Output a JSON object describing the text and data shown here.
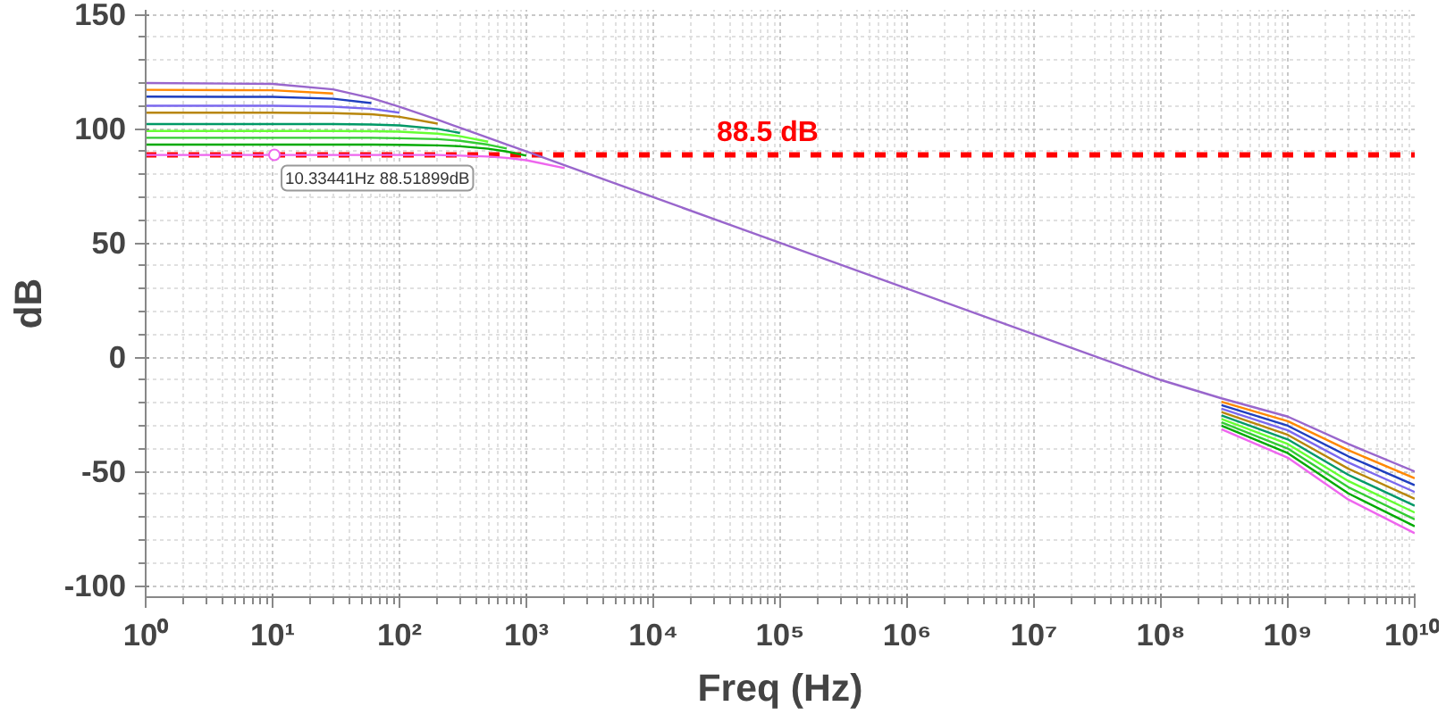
{
  "chart_data": {
    "type": "line",
    "xlabel": "Freq (Hz)",
    "ylabel": "dB",
    "log": "x",
    "grid": true,
    "marker": "none",
    "line_style": "solid",
    "x": [
      1,
      10,
      30,
      60,
      100,
      200,
      300,
      500,
      700,
      1000,
      2000,
      3000,
      10000,
      100000,
      1000000,
      10000000,
      100000000,
      300000000,
      1000000000,
      3000000000,
      10000000000
    ],
    "xlim": [
      1,
      10000000000
    ],
    "xticks": [
      {
        "value": 1,
        "label": "10⁰"
      },
      {
        "value": 10,
        "label": "10¹"
      },
      {
        "value": 100,
        "label": "10²"
      },
      {
        "value": 1000,
        "label": "10³"
      },
      {
        "value": 10000,
        "label": "10⁴"
      },
      {
        "value": 100000,
        "label": "10⁵"
      },
      {
        "value": 1000000,
        "label": "10⁶"
      },
      {
        "value": 10000000,
        "label": "10⁷"
      },
      {
        "value": 100000000,
        "label": "10⁸"
      },
      {
        "value": 1000000000,
        "label": "10⁹"
      },
      {
        "value": 10000000000,
        "label": "10¹⁰"
      }
    ],
    "ylim": [
      -105,
      152
    ],
    "yticks": [
      -100,
      -50,
      0,
      50,
      100,
      150
    ],
    "series": [
      {
        "color": "#ff8800",
        "values": [
          117,
          116.8,
          115.4,
          null,
          null,
          null,
          null,
          null,
          null,
          null,
          null,
          null,
          null,
          null,
          null,
          null,
          null,
          -19.5,
          -28,
          -40.7,
          -53
        ]
      },
      {
        "color": "#1f3fbf",
        "values": [
          114,
          113.9,
          113.1,
          111.2,
          null,
          null,
          null,
          null,
          null,
          null,
          null,
          null,
          null,
          null,
          null,
          null,
          null,
          -21,
          -30,
          -43.4,
          -56
        ]
      },
      {
        "color": "#7b68ee",
        "values": [
          110,
          110,
          109.6,
          108.7,
          107.0,
          null,
          null,
          null,
          null,
          null,
          null,
          null,
          null,
          null,
          null,
          null,
          null,
          -22.5,
          -32,
          -46.1,
          -59
        ]
      },
      {
        "color": "#b8860b",
        "values": [
          107,
          107,
          106.8,
          106.3,
          105.2,
          102.2,
          null,
          null,
          null,
          null,
          null,
          null,
          null,
          null,
          null,
          null,
          null,
          -24,
          -34,
          -48.8,
          -62
        ]
      },
      {
        "color": "#009966",
        "values": [
          102,
          102,
          102,
          101.8,
          101.4,
          99.9,
          98.1,
          null,
          null,
          null,
          null,
          null,
          null,
          null,
          null,
          null,
          null,
          -25.5,
          -36,
          -51.5,
          -65
        ]
      },
      {
        "color": "#66ff33",
        "values": [
          99,
          99,
          99,
          98.9,
          98.7,
          97.8,
          96.7,
          94.3,
          null,
          null,
          null,
          null,
          null,
          null,
          null,
          null,
          null,
          -27,
          -38,
          -54.2,
          -68
        ]
      },
      {
        "color": "#33cc33",
        "values": [
          96,
          96,
          96,
          96,
          95.8,
          95.4,
          94.7,
          93.0,
          91.3,
          null,
          null,
          null,
          null,
          null,
          null,
          null,
          null,
          -28.5,
          -40,
          -56.9,
          -71
        ]
      },
      {
        "color": "#00aa00",
        "values": [
          93,
          93,
          93,
          93,
          92.9,
          92.7,
          92.3,
          91.2,
          90.0,
          88.2,
          null,
          null,
          null,
          null,
          null,
          null,
          null,
          -30,
          -42,
          -59.6,
          -74
        ]
      },
      {
        "color": "#ee66ee",
        "values": [
          88.5,
          88.5,
          88.5,
          88.5,
          88.5,
          88.5,
          88.2,
          87.8,
          87.2,
          86.2,
          82.7,
          null,
          null,
          null,
          null,
          null,
          null,
          -31.5,
          -44,
          -62.3,
          -77
        ]
      },
      {
        "color": "#9966cc",
        "values": [
          120,
          119.6,
          117.2,
          113.4,
          109.6,
          103.9,
          100.4,
          96.0,
          93.1,
          90.0,
          84.0,
          80.5,
          70,
          50,
          30,
          10,
          -10,
          -18,
          -26,
          -38,
          -50
        ]
      }
    ],
    "ref_lines": [
      {
        "axis": "y",
        "value": 88.5,
        "label": "88.5 dB",
        "color": "#ff0000",
        "line_style": "dashed"
      }
    ],
    "annotations": [
      {
        "text": "10.33441Hz 88.51899dB",
        "x": 10.33441,
        "y": 88.51899
      }
    ]
  }
}
